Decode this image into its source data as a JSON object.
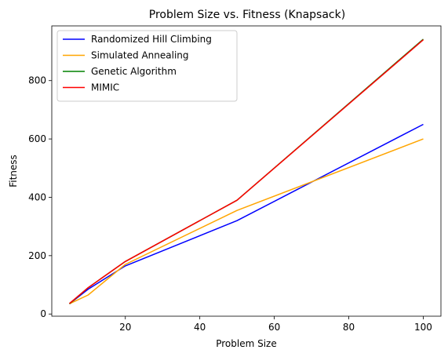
{
  "chart_data": {
    "type": "line",
    "title": "Problem Size vs. Fitness (Knapsack)",
    "xlabel": "Problem Size",
    "ylabel": "Fitness",
    "xlim": [
      0.25,
      104.75
    ],
    "ylim": [
      -7.5,
      987.5
    ],
    "xticks": [
      20,
      40,
      60,
      80,
      100
    ],
    "yticks": [
      0,
      200,
      400,
      600,
      800
    ],
    "grid": false,
    "legend_position": "top-left",
    "x": [
      5,
      10,
      20,
      50,
      100
    ],
    "series": [
      {
        "name": "Randomized Hill Climbing",
        "color": "#0000ff",
        "values": [
          35,
          85,
          165,
          320,
          650
        ]
      },
      {
        "name": "Simulated Annealing",
        "color": "#ffa500",
        "values": [
          35,
          65,
          170,
          355,
          600
        ]
      },
      {
        "name": "Genetic Algorithm",
        "color": "#008000",
        "values": [
          35,
          90,
          180,
          390,
          942
        ]
      },
      {
        "name": "MIMIC",
        "color": "#ff0000",
        "values": [
          36,
          90,
          180,
          390,
          940
        ]
      }
    ]
  }
}
